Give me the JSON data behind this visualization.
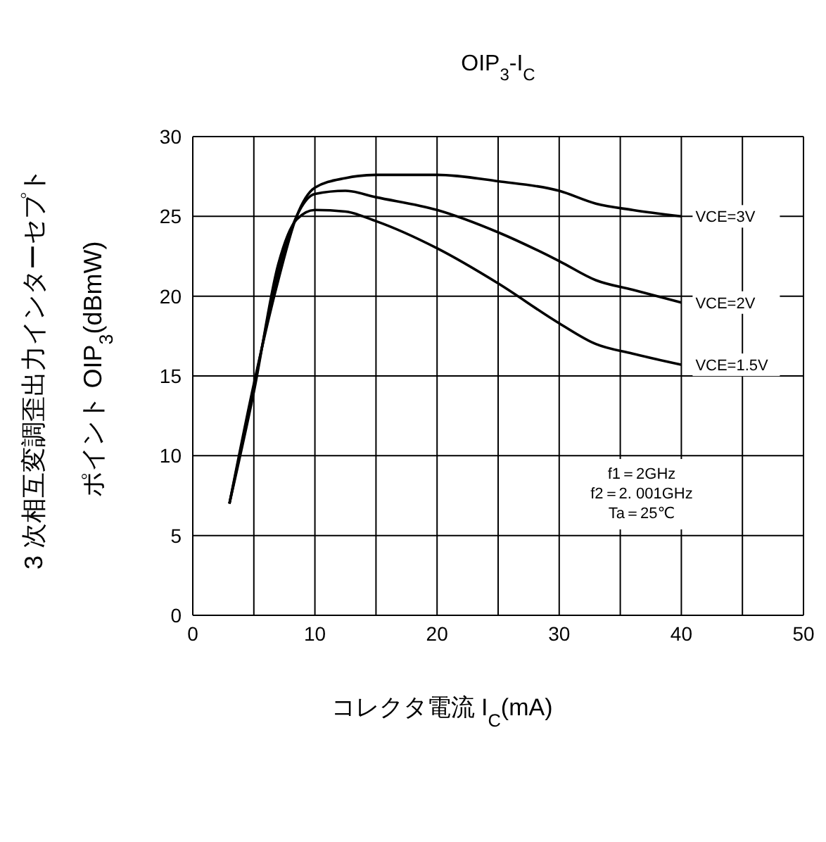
{
  "chart_data": {
    "type": "line",
    "title": "OIP$_{3}$-I$_{C}$",
    "xlabel": "コレクタ電流 I$_{C}$(mA)",
    "ylabel": "3 次相互変調歪出力インターセプトポイント OIP$_{3}$(dBmW)",
    "series": [
      {
        "name": "VCE=3V",
        "color": "#000000",
        "x": [
          3,
          5,
          7,
          8.5,
          10,
          12.5,
          15,
          20,
          25,
          30,
          33,
          36,
          40
        ],
        "values": [
          7,
          14.5,
          21,
          25,
          26.8,
          27.4,
          27.6,
          27.6,
          27.2,
          26.6,
          25.8,
          25.4,
          25
        ]
      },
      {
        "name": "VCE=2V",
        "color": "#000000",
        "x": [
          3,
          5,
          7,
          8.5,
          10,
          12.5,
          15,
          20,
          25,
          30,
          33,
          36,
          40
        ],
        "values": [
          7,
          14.3,
          21.5,
          25,
          26.4,
          26.6,
          26.2,
          25.4,
          24,
          22.2,
          21,
          20.4,
          19.6
        ]
      },
      {
        "name": "VCE=1.5V",
        "color": "#000000",
        "x": [
          3,
          5,
          7,
          8.5,
          10,
          12.5,
          15,
          20,
          25,
          30,
          33,
          36,
          40
        ],
        "values": [
          7,
          14,
          22,
          24.8,
          25.4,
          25.3,
          24.7,
          23,
          20.8,
          18.3,
          17,
          16.4,
          15.7
        ]
      }
    ],
    "xlim": [
      0,
      50
    ],
    "ylim": [
      0,
      30
    ],
    "xticks": [
      0,
      {
        "value": 5,
        "label": null
      },
      10,
      {
        "value": 15,
        "label": null
      },
      20,
      {
        "value": 25,
        "label": null
      },
      30,
      {
        "value": 35,
        "label": null
      },
      40,
      {
        "value": 45,
        "label": null
      },
      50
    ],
    "yticks": [
      0,
      5,
      10,
      15,
      20,
      25,
      30
    ],
    "grid": true,
    "marker": "none",
    "line_style": "solid",
    "annotations": [
      "f1＝2GHz",
      "f2＝2. 001GHz",
      "Ta＝25℃"
    ]
  }
}
